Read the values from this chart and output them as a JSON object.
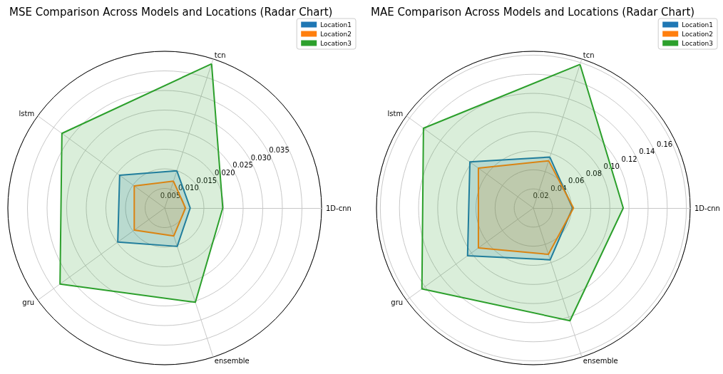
{
  "chart_data": [
    {
      "type": "radar",
      "title": "MSE Comparison Across Models and Locations (Radar Chart)",
      "categories": [
        "tcn",
        "1D-cnn",
        "ensemble",
        "gru",
        "lstm"
      ],
      "series": [
        {
          "name": "Location1",
          "color": "#1f77b4",
          "values": [
            0.01,
            0.0065,
            0.0103,
            0.0148,
            0.0142
          ]
        },
        {
          "name": "Location2",
          "color": "#ff7f0e",
          "values": [
            0.0072,
            0.0053,
            0.0075,
            0.0096,
            0.0096
          ]
        },
        {
          "name": "Location3",
          "color": "#2ca02c",
          "values": [
            0.0387,
            0.0148,
            0.0253,
            0.033,
            0.0324
          ]
        }
      ],
      "ylim": [
        0,
        0.04
      ],
      "yticks": [
        0.005,
        {
          "value": 0.01,
          "label": "0.010"
        },
        0.015,
        {
          "value": 0.02,
          "label": "0.020"
        },
        0.025,
        {
          "value": 0.03,
          "label": "0.030"
        },
        0.035
      ],
      "grid": true,
      "legend": "top right",
      "marker": "none"
    },
    {
      "type": "radar",
      "title": "MAE Comparison Across Models and Locations (Radar Chart)",
      "categories": [
        "tcn",
        "1D-cnn",
        "ensemble",
        "gru",
        "lstm"
      ],
      "series": [
        {
          "name": "Location1",
          "color": "#1f77b4",
          "values": [
            0.056,
            0.041,
            0.057,
            0.085,
            0.082
          ]
        },
        {
          "name": "Location2",
          "color": "#ff7f0e",
          "values": [
            0.052,
            0.042,
            0.051,
            0.071,
            0.071
          ]
        },
        {
          "name": "Location3",
          "color": "#2ca02c",
          "values": [
            0.158,
            0.094,
            0.124,
            0.144,
            0.142
          ]
        }
      ],
      "ylim": [
        0,
        0.164
      ],
      "yticks": [
        0.02,
        0.04,
        0.06,
        0.08,
        {
          "value": 0.1,
          "label": "0.10"
        },
        0.12,
        0.14,
        0.16
      ],
      "grid": true,
      "legend": "top right",
      "marker": "none"
    }
  ]
}
